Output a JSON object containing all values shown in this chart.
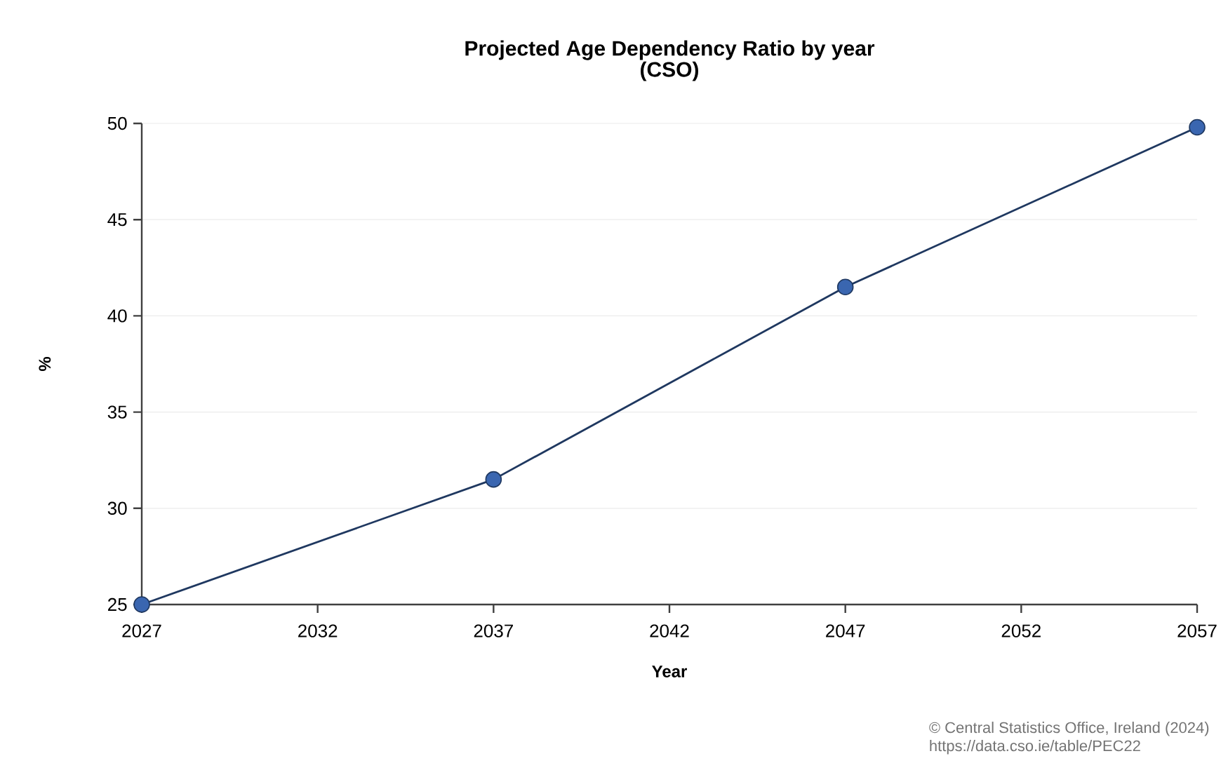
{
  "chart_data": {
    "type": "line",
    "title": "Projected Age Dependency Ratio by year",
    "subtitle": "(CSO)",
    "xlabel": "Year",
    "ylabel": "%",
    "x": [
      2027,
      2037,
      2047,
      2057
    ],
    "series": [
      {
        "color": "#3a66b0",
        "values": [
          25,
          31.5,
          41.5,
          49.8
        ]
      }
    ],
    "xlim": [
      2027,
      2057
    ],
    "xticks": [
      2027,
      2032,
      2037,
      2042,
      2047,
      2052,
      2057
    ],
    "ylim": [
      25,
      50
    ],
    "yticks": [
      25,
      30,
      35,
      40,
      45,
      50
    ],
    "grid": "y",
    "marker": "circle",
    "line_style": "solid",
    "annotations": [
      "© Central Statistics Office, Ireland (2024)",
      "https://data.cso.ie/table/PEC22"
    ]
  }
}
